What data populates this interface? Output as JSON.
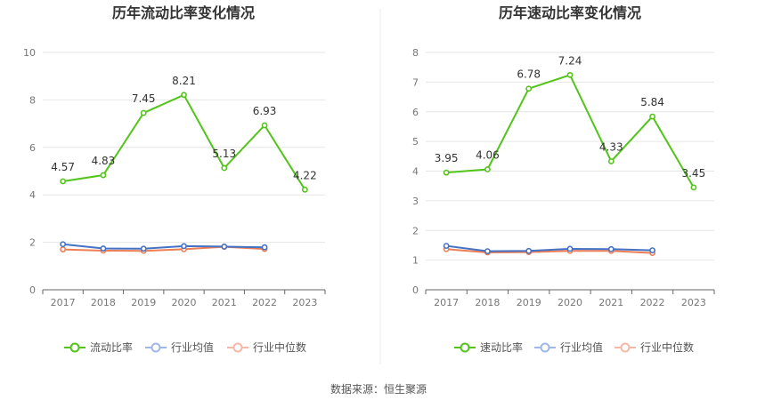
{
  "chart_data": [
    {
      "type": "line",
      "title": "历年流动比率变化情况",
      "categories": [
        "2017",
        "2018",
        "2019",
        "2020",
        "2021",
        "2022",
        "2023"
      ],
      "ylim": [
        0,
        10
      ],
      "yticks": [
        0,
        2,
        4,
        6,
        8,
        10
      ],
      "grid": true,
      "legend_placement": "bottom",
      "series": [
        {
          "name": "流动比率",
          "color": "#52c41a",
          "values": [
            4.57,
            4.83,
            7.45,
            8.21,
            5.13,
            6.93,
            4.22
          ],
          "labels": [
            "4.57",
            "4.83",
            "7.45",
            "8.21",
            "5.13",
            "6.93",
            "4.22"
          ]
        },
        {
          "name": "行业均值",
          "color": "#4472c4",
          "values": [
            1.92,
            1.74,
            1.73,
            1.84,
            1.82,
            1.79,
            null
          ]
        },
        {
          "name": "行业中位数",
          "color": "#ed7d55",
          "values": [
            1.7,
            1.65,
            1.64,
            1.71,
            1.81,
            1.72,
            null
          ]
        }
      ]
    },
    {
      "type": "line",
      "title": "历年速动比率变化情况",
      "categories": [
        "2017",
        "2018",
        "2019",
        "2020",
        "2021",
        "2022",
        "2023"
      ],
      "ylim": [
        0,
        8
      ],
      "yticks": [
        0,
        1,
        2,
        3,
        4,
        5,
        6,
        7,
        8
      ],
      "grid": true,
      "legend_placement": "bottom",
      "series": [
        {
          "name": "速动比率",
          "color": "#52c41a",
          "values": [
            3.95,
            4.06,
            6.78,
            7.24,
            4.33,
            5.84,
            3.45
          ],
          "labels": [
            "3.95",
            "4.06",
            "6.78",
            "7.24",
            "4.33",
            "5.84",
            "3.45"
          ]
        },
        {
          "name": "行业均值",
          "color": "#4472c4",
          "values": [
            1.48,
            1.3,
            1.31,
            1.38,
            1.37,
            1.33,
            null
          ]
        },
        {
          "name": "行业中位数",
          "color": "#ed7d55",
          "values": [
            1.37,
            1.26,
            1.27,
            1.31,
            1.31,
            1.24,
            null
          ]
        }
      ]
    }
  ],
  "legend_colors": [
    "#52c41a",
    "#9db8e8",
    "#f6b8a6"
  ],
  "footer": {
    "source": "数据来源：恒生聚源"
  }
}
